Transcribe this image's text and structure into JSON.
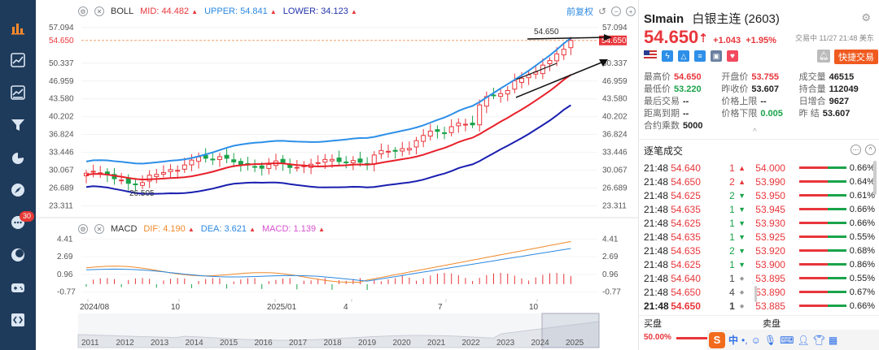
{
  "sidebar": {
    "items": [
      {
        "icon": "bar-chart-icon",
        "active": true
      },
      {
        "icon": "trend-icon"
      },
      {
        "icon": "news-icon"
      },
      {
        "icon": "filter-icon"
      },
      {
        "icon": "pie-icon"
      },
      {
        "icon": "compass-icon"
      },
      {
        "icon": "chat-icon",
        "badge": "30"
      },
      {
        "icon": "moon-icon"
      },
      {
        "icon": "gamepad-icon"
      },
      {
        "icon": "code-icon"
      }
    ]
  },
  "boll": {
    "name": "BOLL",
    "mid_label": "MID:",
    "mid": "44.482",
    "upper_label": "UPPER:",
    "upper": "54.841",
    "lower_label": "LOWER:",
    "lower": "34.123",
    "adjust": "前复权"
  },
  "macd": {
    "name": "MACD",
    "dif_label": "DIF:",
    "dif": "4.190",
    "dea_label": "DEA:",
    "dea": "3.621",
    "macd_label": "MACD:",
    "macd": "1.139"
  },
  "chart_data": {
    "type": "candlestick",
    "price_axis_ticks": [
      "57.094",
      "54.650",
      "50.337",
      "46.959",
      "43.580",
      "40.202",
      "36.824",
      "33.446",
      "30.067",
      "26.689",
      "23.311"
    ],
    "price_axis_ticks_right": [
      "57.094",
      "54.650",
      "50.337",
      "46.959",
      "43.580",
      "40.202",
      "36.824",
      "33.446",
      "30.067",
      "26.689",
      "23.311"
    ],
    "current_price_label": "54.650",
    "high_label": "54.650",
    "low_label": "26.505",
    "macd_axis_ticks": [
      "4.41",
      "2.69",
      "0.96",
      "-0.77"
    ],
    "time_labels": [
      "2024/08",
      "10",
      "2025/01",
      "4",
      "7",
      "10"
    ],
    "overview_years": [
      "2011",
      "2012",
      "2013",
      "2014",
      "2015",
      "2016",
      "2017",
      "2018",
      "2019",
      "2020",
      "2021",
      "2022",
      "2023",
      "2024",
      "2025"
    ]
  },
  "quote": {
    "symbol": "SImain",
    "name": "白银主连 (2603)",
    "price": "54.650",
    "change": "+1.043",
    "change_pct": "+1.95%",
    "status": "交易中 11/27 21:48 美东",
    "quick_trade": "快捷交易",
    "expand_arrow": "^"
  },
  "stats": [
    [
      {
        "k": "最高价",
        "v": "54.650",
        "c": "red"
      },
      {
        "k": "开盘价",
        "v": "53.755",
        "c": "red"
      },
      {
        "k": "成交量",
        "v": "46515",
        "c": "dark"
      }
    ],
    [
      {
        "k": "最低价",
        "v": "53.220",
        "c": "green"
      },
      {
        "k": "昨收价",
        "v": "53.607",
        "c": "dark"
      },
      {
        "k": "持合量",
        "v": "112049",
        "c": "dark"
      }
    ],
    [
      {
        "k": "最后交易",
        "v": "--",
        "c": "dark"
      },
      {
        "k": "价格上限",
        "v": "--",
        "c": "dark"
      },
      {
        "k": "日增合",
        "v": "9627",
        "c": "dark"
      }
    ],
    [
      {
        "k": "距离到期",
        "v": "--",
        "c": "dark"
      },
      {
        "k": "价格下限",
        "v": "0.005",
        "c": "green"
      },
      {
        "k": "昨 结",
        "v": "53.607",
        "c": "dark"
      }
    ],
    [
      {
        "k": "合约乘数",
        "v": "5000",
        "c": "dark"
      },
      {
        "k": "",
        "v": "",
        "c": "dark"
      },
      {
        "k": "",
        "v": "",
        "c": "dark"
      }
    ]
  ],
  "trades_header": "逐笔成交",
  "trades": [
    {
      "time": "21:48",
      "price": "54.640",
      "vol": "1",
      "dir": "up",
      "bid": "54.000",
      "pct": "0.66%"
    },
    {
      "time": "21:48",
      "price": "54.650",
      "vol": "2",
      "dir": "up",
      "bid": "53.990",
      "pct": "0.64%"
    },
    {
      "time": "21:48",
      "price": "54.625",
      "vol": "2",
      "dir": "down",
      "bid": "53.950",
      "pct": "0.61%"
    },
    {
      "time": "21:48",
      "price": "54.635",
      "vol": "1",
      "dir": "down",
      "bid": "53.945",
      "pct": "0.66%"
    },
    {
      "time": "21:48",
      "price": "54.625",
      "vol": "1",
      "dir": "down",
      "bid": "53.930",
      "pct": "0.66%"
    },
    {
      "time": "21:48",
      "price": "54.635",
      "vol": "1",
      "dir": "down",
      "bid": "53.925",
      "pct": "0.55%"
    },
    {
      "time": "21:48",
      "price": "54.635",
      "vol": "2",
      "dir": "down",
      "bid": "53.920",
      "pct": "0.68%"
    },
    {
      "time": "21:48",
      "price": "54.625",
      "vol": "1",
      "dir": "down",
      "bid": "53.900",
      "pct": "0.86%"
    },
    {
      "time": "21:48",
      "price": "54.640",
      "vol": "1",
      "dir": "flat",
      "bid": "53.895",
      "pct": "0.55%"
    },
    {
      "time": "21:48",
      "price": "54.650",
      "vol": "4",
      "dir": "flat",
      "bid": "53.890",
      "pct": "0.67%"
    },
    {
      "time": "21:48",
      "price": "54.650",
      "vol": "1",
      "dir": "flat",
      "bid": "53.885",
      "pct": "0.66%"
    }
  ],
  "bottom": {
    "buy": "买盘",
    "sell": "卖盘",
    "buy_pct": "50.00%",
    "ime_label": "中",
    "sogou": "S"
  },
  "colors": {
    "up": "#e8363b",
    "down": "#1aa34a",
    "mid": "#e8202a",
    "upper": "#2d8fe8",
    "lower": "#1a1fb0",
    "sidebar": "#1f3b5b"
  }
}
